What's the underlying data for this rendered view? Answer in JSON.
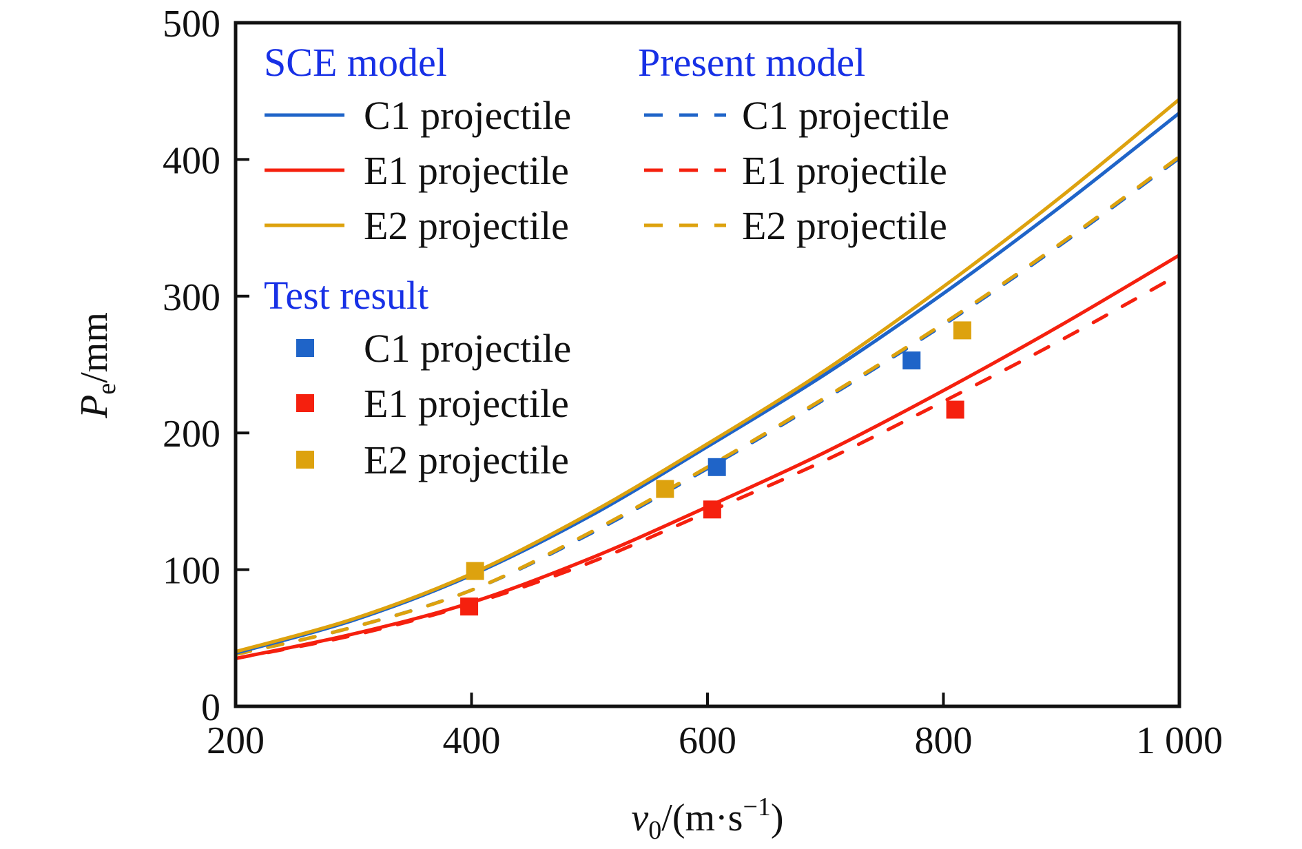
{
  "chart_data": {
    "type": "line",
    "title": "",
    "xlabel": {
      "main": "v",
      "sub": "0",
      "unit": "/(m·s",
      "sup": "−1",
      "close": ")"
    },
    "ylabel": {
      "main": "P",
      "sub": "e",
      "unit": "/mm"
    },
    "xlim": [
      200,
      1000
    ],
    "ylim": [
      0,
      500
    ],
    "grid": false,
    "xticks": [
      200,
      400,
      600,
      800,
      1000
    ],
    "xtick_labels": [
      "200",
      "400",
      "600",
      "800",
      "1 000"
    ],
    "yticks": [
      0,
      100,
      200,
      300,
      400,
      500
    ],
    "ytick_labels": [
      "0",
      "100",
      "200",
      "300",
      "400",
      "500"
    ],
    "x": [
      200,
      300,
      400,
      500,
      600,
      700,
      800,
      900,
      1000
    ],
    "series": [
      {
        "name": "SCE model - C1 projectile",
        "group": "SCE model",
        "label": "C1 projectile",
        "style": "solid",
        "color": "#1f64c8",
        "values": [
          39,
          63,
          96,
          139,
          190,
          243,
          302,
          366,
          434
        ]
      },
      {
        "name": "SCE model - E1 projectile",
        "group": "SCE model",
        "label": "E1 projectile",
        "style": "solid",
        "color": "#f5200e",
        "values": [
          35,
          53,
          76,
          108,
          146,
          186,
          231,
          279,
          330
        ]
      },
      {
        "name": "SCE model - E2 projectile",
        "group": "SCE model",
        "label": "E2 projectile",
        "style": "solid",
        "color": "#dda20e",
        "values": [
          40,
          64,
          97,
          141,
          192,
          246,
          307,
          373,
          444
        ]
      },
      {
        "name": "Present model - C1 projectile",
        "group": "Present model",
        "label": "C1 projectile",
        "style": "dashed",
        "color": "#1f64c8",
        "values": [
          38,
          58,
          85,
          126,
          174,
          225,
          279,
          338,
          401
        ]
      },
      {
        "name": "Present model - E1 projectile",
        "group": "Present model",
        "label": "E1 projectile",
        "style": "dashed",
        "color": "#f5200e",
        "values": [
          35,
          52,
          75,
          105,
          142,
          180,
          223,
          268,
          316
        ]
      },
      {
        "name": "Present model - E2 projectile",
        "group": "Present model",
        "label": "E2 projectile",
        "style": "dashed",
        "color": "#dda20e",
        "values": [
          38,
          58,
          85,
          127,
          175,
          226,
          280,
          339,
          402
        ]
      }
    ],
    "points": [
      {
        "name": "Test result - C1 projectile",
        "group": "Test result",
        "label": "C1 projectile",
        "color": "#1f64c8",
        "data": [
          [
            608,
            175
          ],
          [
            773,
            253
          ]
        ]
      },
      {
        "name": "Test result - E1 projectile",
        "group": "Test result",
        "label": "E1 projectile",
        "color": "#f5200e",
        "data": [
          [
            398,
            73
          ],
          [
            604,
            144
          ],
          [
            810,
            217
          ]
        ]
      },
      {
        "name": "Test result - E2 projectile",
        "group": "Test result",
        "label": "E2 projectile",
        "color": "#dda20e",
        "data": [
          [
            403,
            99
          ],
          [
            564,
            159
          ],
          [
            816,
            275
          ]
        ]
      }
    ],
    "legend": {
      "placement": "top-left",
      "groups": [
        {
          "title": "SCE model",
          "items": [
            "C1 projectile",
            "E1 projectile",
            "E2 projectile"
          ]
        },
        {
          "title": "Present model",
          "items": [
            "C1 projectile",
            "E1 projectile",
            "E2 projectile"
          ]
        },
        {
          "title": "Test result",
          "items": [
            "C1 projectile",
            "E1 projectile",
            "E2 projectile"
          ]
        }
      ],
      "title_color": "#1730e6"
    }
  }
}
